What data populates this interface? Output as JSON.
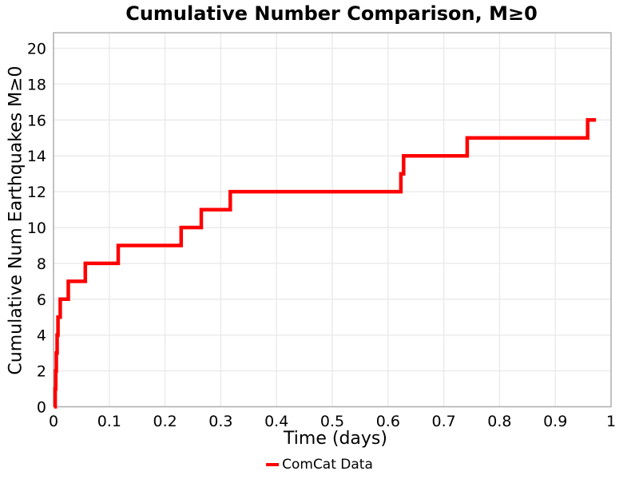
{
  "chart_data": {
    "type": "line",
    "line_style": "step-post",
    "title": "Cumulative Number Comparison, M≥0",
    "xlabel": "Time (days)",
    "ylabel": "Cumulative Num Earthquakes M≥0",
    "xlim": [
      0,
      1
    ],
    "ylim": [
      0,
      20.87
    ],
    "grid": true,
    "legend_position": "bottom-center",
    "xticks": {
      "values": [
        0,
        0.1,
        0.2,
        0.3,
        0.4,
        0.5,
        0.6,
        0.7,
        0.8,
        0.9,
        1
      ],
      "labels": [
        "0",
        "0.1",
        "0.2",
        "0.3",
        "0.4",
        "0.5",
        "0.6",
        "0.7",
        "0.8",
        "0.9",
        "1"
      ]
    },
    "yticks": {
      "values": [
        0,
        2,
        4,
        6,
        8,
        10,
        12,
        14,
        16,
        18,
        20
      ],
      "labels": [
        "0",
        "2",
        "4",
        "6",
        "8",
        "10",
        "12",
        "14",
        "16",
        "18",
        "20"
      ]
    },
    "series": [
      {
        "name": "ComCat Data",
        "color": "#ff0000",
        "line_width": 4.5,
        "start": {
          "t": 0.001,
          "n": 0
        },
        "events": [
          {
            "t": 0.003,
            "n": 1
          },
          {
            "t": 0.004,
            "n": 2
          },
          {
            "t": 0.005,
            "n": 3
          },
          {
            "t": 0.0065,
            "n": 4
          },
          {
            "t": 0.008,
            "n": 5
          },
          {
            "t": 0.012,
            "n": 6
          },
          {
            "t": 0.0265,
            "n": 7
          },
          {
            "t": 0.057,
            "n": 8
          },
          {
            "t": 0.116,
            "n": 9
          },
          {
            "t": 0.229,
            "n": 10
          },
          {
            "t": 0.265,
            "n": 11
          },
          {
            "t": 0.317,
            "n": 12
          },
          {
            "t": 0.623,
            "n": 13
          },
          {
            "t": 0.628,
            "n": 14
          },
          {
            "t": 0.742,
            "n": 15
          },
          {
            "t": 0.958,
            "n": 16
          }
        ],
        "end_t": 0.973
      }
    ],
    "legend": {
      "entries": [
        {
          "label": "ComCat Data",
          "color": "#ff0000"
        }
      ]
    }
  },
  "colors": {
    "line": "#ff0000",
    "grid": "#ebebeb",
    "spine": "#b0b0b0",
    "text": "#000000",
    "background": "#ffffff"
  }
}
